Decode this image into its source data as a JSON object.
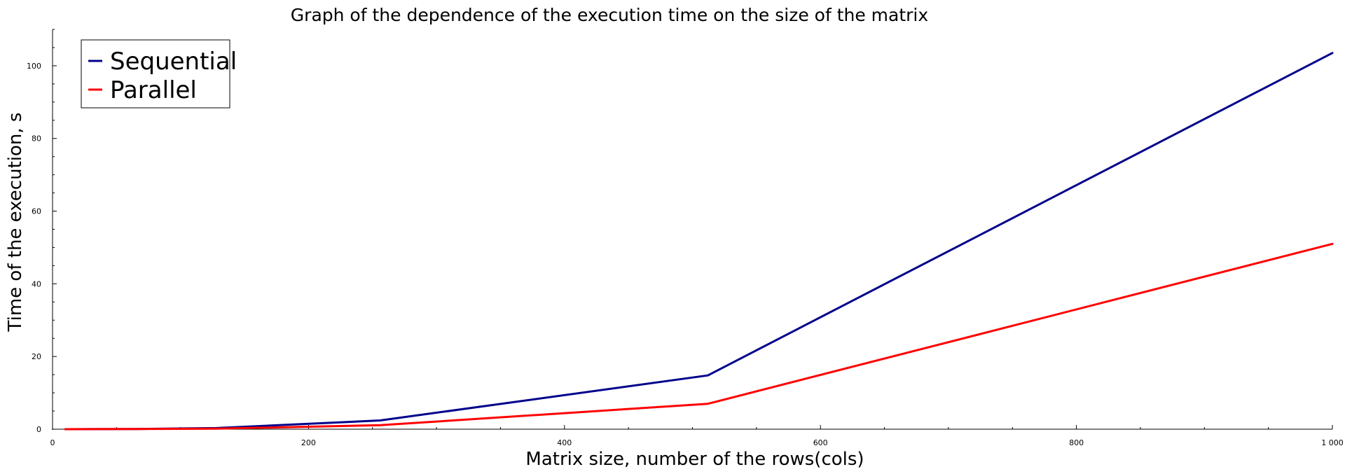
{
  "chart_data": {
    "type": "line",
    "title": "Graph of the dependence of the execution time on the size of the matrix",
    "xlabel": "Matrix size, number of the rows(cols)",
    "ylabel": "Time of the execution, s",
    "xlim": [
      0,
      1000
    ],
    "ylim": [
      0,
      110
    ],
    "xticks": [
      0,
      200,
      400,
      600,
      800,
      1000
    ],
    "xtick_labels": [
      "0",
      "200",
      "400",
      "600",
      "800",
      "1 000"
    ],
    "yticks": [
      0,
      20,
      40,
      60,
      80,
      100
    ],
    "ytick_labels": [
      "0",
      "20",
      "40",
      "60",
      "80",
      "100"
    ],
    "grid": false,
    "legend_position": "top-left",
    "series": [
      {
        "name": "Sequential",
        "color": "#00008b",
        "x": [
          10,
          64,
          128,
          256,
          512,
          1000
        ],
        "y": [
          0.0,
          0.05,
          0.3,
          2.4,
          14.8,
          103.5
        ]
      },
      {
        "name": "Parallel",
        "color": "#ff0000",
        "x": [
          10,
          64,
          128,
          256,
          512,
          1000
        ],
        "y": [
          0.0,
          0.03,
          0.15,
          1.1,
          7.0,
          51.0
        ]
      }
    ]
  }
}
